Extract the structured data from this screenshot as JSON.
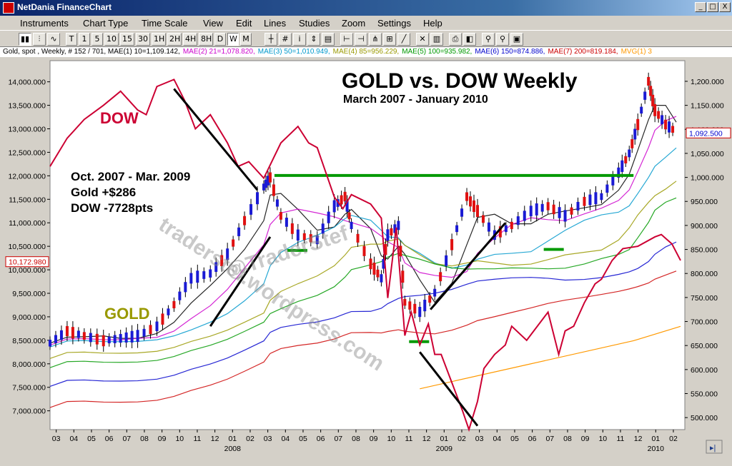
{
  "window": {
    "title": "NetDania FinanceChart",
    "min": "_",
    "max": "□",
    "close": "X"
  },
  "menu": [
    "Instruments",
    "Chart Type",
    "Time Scale",
    "View",
    "Edit",
    "Lines",
    "Studies",
    "Zoom",
    "Settings",
    "Help"
  ],
  "toolbar": {
    "periods": [
      "T",
      "1",
      "5",
      "10",
      "15",
      "30",
      "1H",
      "2H",
      "4H",
      "8H",
      "D",
      "W",
      "M"
    ],
    "active_period": "W"
  },
  "infobar": [
    {
      "text": "Gold, spot , Weekly, # 152 / 701, MAE(1) 10=1,109.142,",
      "color": "#000000"
    },
    {
      "text": "MAE(2) 21=1,078.820,",
      "color": "#cc00cc"
    },
    {
      "text": "MAE(3) 50=1,010.949,",
      "color": "#0099cc"
    },
    {
      "text": "MAE(4) 85=956.229,",
      "color": "#999900"
    },
    {
      "text": "MAE(5) 100=935.982,",
      "color": "#009900"
    },
    {
      "text": "MAE(6) 150=874.886,",
      "color": "#0000cc"
    },
    {
      "text": "MAE(7) 200=819.184,",
      "color": "#cc0000"
    },
    {
      "text": "MVG(1) 3",
      "color": "#ff9900"
    }
  ],
  "chart_data": {
    "type": "line",
    "title": "GOLD vs. DOW Weekly",
    "subtitle": "March 2007 - January 2010",
    "annotations": {
      "dow_label": "DOW",
      "gold_label": "GOLD",
      "summary": [
        "Oct. 2007 - Mar. 2009",
        "Gold +$286",
        "DOW -7728pts"
      ],
      "watermark": "traderstef.wordpress.com",
      "watermark2": "@TraderStef"
    },
    "left_axis": {
      "label": "DOW",
      "ticks": [
        "14,000.000",
        "13,500.000",
        "13,000.000",
        "12,500.000",
        "12,000.000",
        "11,500.000",
        "11,000.000",
        "10,500.000",
        "10,000.000",
        "9,500.000",
        "9,000.000",
        "8,500.000",
        "8,000.000",
        "7,500.000",
        "7,000.000"
      ],
      "tick_values": [
        14000,
        13500,
        13000,
        12500,
        12000,
        11500,
        11000,
        10500,
        10000,
        9500,
        9000,
        8500,
        8000,
        7500,
        7000
      ],
      "range": [
        6600,
        14450
      ],
      "current": "10,172.980",
      "current_value": 10173
    },
    "right_axis": {
      "label": "Gold",
      "ticks": [
        "1,200.000",
        "1,150.000",
        "1,100.000",
        "1,050.000",
        "1,000.000",
        "950.000",
        "900.000",
        "850.000",
        "800.000",
        "750.000",
        "700.000",
        "650.000",
        "600.000",
        "550.000",
        "500.000"
      ],
      "tick_values": [
        1200,
        1150,
        1100,
        1050,
        1000,
        950,
        900,
        850,
        800,
        750,
        700,
        650,
        600,
        550,
        500
      ],
      "range": [
        475,
        1243
      ],
      "current": "1,092.500",
      "current_value": 1092.5
    },
    "x_axis": {
      "months": [
        "03",
        "04",
        "05",
        "06",
        "07",
        "08",
        "09",
        "10",
        "11",
        "12",
        "01",
        "02",
        "03",
        "04",
        "05",
        "06",
        "07",
        "08",
        "09",
        "10",
        "11",
        "12",
        "01",
        "02",
        "03",
        "04",
        "05",
        "06",
        "07",
        "08",
        "09",
        "10",
        "11",
        "12",
        "01",
        "02"
      ],
      "years": [
        "2008",
        "2009",
        "2010"
      ],
      "range": [
        2007.17,
        2010.14
      ]
    },
    "series": [
      {
        "name": "DOW",
        "axis": "left",
        "color": "#cc0033",
        "x": [
          2007.17,
          2007.25,
          2007.33,
          2007.42,
          2007.5,
          2007.58,
          2007.62,
          2007.67,
          2007.75,
          2007.8,
          2007.85,
          2007.92,
          2008.0,
          2008.05,
          2008.1,
          2008.17,
          2008.25,
          2008.33,
          2008.38,
          2008.42,
          2008.5,
          2008.54,
          2008.58,
          2008.67,
          2008.72,
          2008.75,
          2008.79,
          2008.83,
          2008.86,
          2008.9,
          2008.94,
          2008.97,
          2009.0,
          2009.05,
          2009.1,
          2009.13,
          2009.17,
          2009.2,
          2009.25,
          2009.3,
          2009.33,
          2009.4,
          2009.45,
          2009.5,
          2009.55,
          2009.58,
          2009.62,
          2009.67,
          2009.72,
          2009.75,
          2009.8,
          2009.85,
          2009.92,
          2010.0,
          2010.03,
          2010.08,
          2010.12
        ],
        "y": [
          12200,
          12800,
          13200,
          13500,
          13800,
          13400,
          13300,
          13900,
          14050,
          13600,
          13000,
          13300,
          12700,
          12200,
          12300,
          11950,
          12700,
          13050,
          12700,
          12600,
          11550,
          11300,
          11600,
          11400,
          11100,
          9400,
          10900,
          8600,
          9100,
          8400,
          8850,
          8200,
          8200,
          7600,
          7000,
          6600,
          7200,
          7900,
          8200,
          8400,
          8800,
          8500,
          8800,
          9100,
          8200,
          8700,
          8800,
          9300,
          9700,
          9800,
          10200,
          10450,
          10500,
          10700,
          10750,
          10550,
          10200
        ]
      },
      {
        "name": "GOLD",
        "axis": "right",
        "color": "#1a1ad4",
        "x": [
          2007.17,
          2007.25,
          2007.33,
          2007.42,
          2007.5,
          2007.58,
          2007.67,
          2007.75,
          2007.83,
          2007.92,
          2008.0,
          2008.08,
          2008.17,
          2008.2,
          2008.25,
          2008.33,
          2008.42,
          2008.5,
          2008.55,
          2008.58,
          2008.67,
          2008.72,
          2008.75,
          2008.8,
          2008.83,
          2008.9,
          2008.97,
          2009.05,
          2009.12,
          2009.17,
          2009.25,
          2009.33,
          2009.42,
          2009.5,
          2009.58,
          2009.67,
          2009.75,
          2009.83,
          2009.88,
          2009.92,
          2009.97,
          2010.0,
          2010.05,
          2010.1
        ],
        "y": [
          655,
          680,
          670,
          660,
          665,
          670,
          690,
          735,
          790,
          800,
          840,
          910,
          980,
          1000,
          920,
          880,
          870,
          940,
          960,
          900,
          820,
          790,
          880,
          900,
          740,
          720,
          760,
          860,
          960,
          930,
          880,
          900,
          930,
          940,
          920,
          950,
          960,
          1010,
          1050,
          1110,
          1200,
          1140,
          1110,
          1095
        ]
      }
    ],
    "moving_averages": [
      {
        "name": "MAE(1) 10",
        "color": "#000000"
      },
      {
        "name": "MAE(2) 21",
        "color": "#cc00cc"
      },
      {
        "name": "MAE(3) 50",
        "color": "#0099cc"
      },
      {
        "name": "MAE(4) 85",
        "color": "#999900"
      },
      {
        "name": "MAE(5) 100",
        "color": "#009900"
      },
      {
        "name": "MAE(6) 150",
        "color": "#0000cc"
      },
      {
        "name": "MAE(7) 200",
        "color": "#cc0000"
      },
      {
        "name": "MVG(1) 3",
        "color": "#ff9900"
      }
    ],
    "reference_lines": [
      {
        "axis": "right",
        "value": 1004,
        "x": [
          2008.22,
          2009.9
        ],
        "color": "#009900"
      }
    ]
  }
}
